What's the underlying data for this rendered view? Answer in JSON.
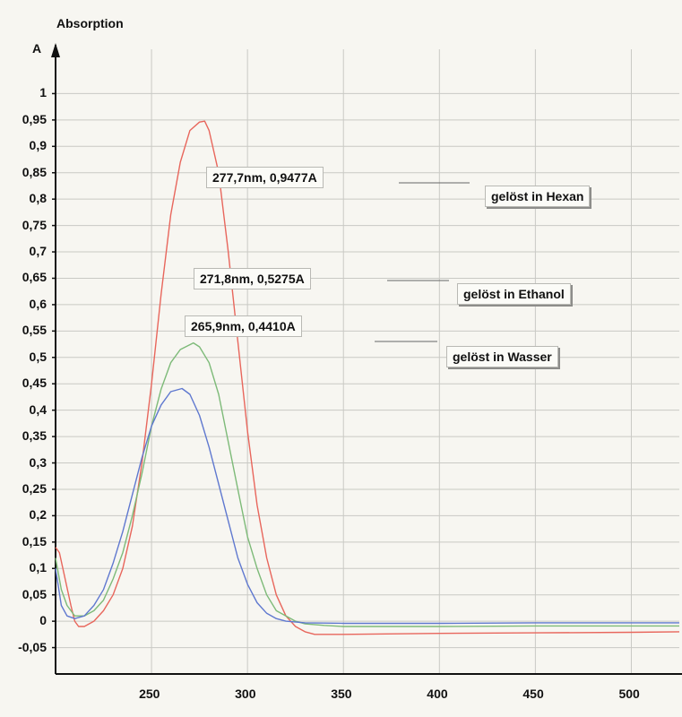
{
  "chart_data": {
    "type": "line",
    "ylabel": "Absorption",
    "yunit": "A",
    "xlim": [
      200,
      525
    ],
    "ylim": [
      -0.1,
      1.05
    ],
    "xticks": [
      250,
      300,
      350,
      400,
      450,
      500
    ],
    "yticks": [
      1,
      0.95,
      0.9,
      0.85,
      0.8,
      0.75,
      0.7,
      0.65,
      0.6,
      0.55,
      0.5,
      0.45,
      0.4,
      0.35,
      0.3,
      0.25,
      0.2,
      0.15,
      0.1,
      0.05,
      0,
      -0.05
    ],
    "ytick_labels": [
      "1",
      "0,95",
      "0,9",
      "0,85",
      "0,8",
      "0,75",
      "0,7",
      "0,65",
      "0,6",
      "0,55",
      "0,5",
      "0,45",
      "0,4",
      "0,35",
      "0,3",
      "0,25",
      "0,2",
      "0,15",
      "0,1",
      "0,05",
      "0",
      "-0,05"
    ],
    "grid": true,
    "series": [
      {
        "name": "gelöst in Hexan",
        "color": "#e8665c",
        "peak_label": "277,7nm, 0,9477A",
        "x": [
          200,
          202,
          205,
          208,
          210,
          212,
          215,
          220,
          225,
          230,
          235,
          240,
          245,
          250,
          255,
          260,
          265,
          270,
          275,
          277.7,
          280,
          285,
          290,
          295,
          300,
          305,
          310,
          315,
          320,
          325,
          330,
          335,
          340,
          350,
          400,
          450,
          500,
          525
        ],
        "y": [
          0.14,
          0.13,
          0.08,
          0.03,
          0.0,
          -0.01,
          -0.01,
          0.0,
          0.02,
          0.05,
          0.1,
          0.18,
          0.3,
          0.45,
          0.62,
          0.77,
          0.87,
          0.93,
          0.946,
          0.9477,
          0.93,
          0.85,
          0.7,
          0.53,
          0.36,
          0.22,
          0.12,
          0.05,
          0.01,
          -0.01,
          -0.02,
          -0.025,
          -0.025,
          -0.025,
          -0.023,
          -0.022,
          -0.021,
          -0.02
        ]
      },
      {
        "name": "gelöst in Ethanol",
        "color": "#7dba78",
        "peak_label": "271,8nm, 0,5275A",
        "x": [
          200,
          203,
          206,
          210,
          215,
          220,
          225,
          230,
          235,
          240,
          245,
          250,
          255,
          260,
          265,
          271.8,
          275,
          280,
          285,
          290,
          295,
          300,
          305,
          310,
          315,
          320,
          325,
          330,
          340,
          350,
          400,
          450,
          500,
          525
        ],
        "y": [
          0.12,
          0.06,
          0.03,
          0.01,
          0.01,
          0.02,
          0.04,
          0.08,
          0.13,
          0.2,
          0.28,
          0.37,
          0.44,
          0.49,
          0.515,
          0.5275,
          0.52,
          0.49,
          0.43,
          0.34,
          0.25,
          0.16,
          0.1,
          0.05,
          0.02,
          0.01,
          0.0,
          -0.005,
          -0.008,
          -0.01,
          -0.01,
          -0.009,
          -0.009,
          -0.009
        ]
      },
      {
        "name": "gelöst in Wasser",
        "color": "#5f78cf",
        "peak_label": "265,9nm, 0,4410A",
        "x": [
          200,
          203,
          206,
          210,
          215,
          220,
          225,
          230,
          235,
          240,
          245,
          250,
          255,
          260,
          265.9,
          270,
          275,
          280,
          285,
          290,
          295,
          300,
          305,
          310,
          315,
          320,
          330,
          350,
          400,
          450,
          500,
          525
        ],
        "y": [
          0.1,
          0.03,
          0.01,
          0.005,
          0.01,
          0.03,
          0.06,
          0.11,
          0.17,
          0.24,
          0.31,
          0.37,
          0.41,
          0.435,
          0.441,
          0.43,
          0.39,
          0.33,
          0.26,
          0.19,
          0.12,
          0.07,
          0.035,
          0.015,
          0.005,
          0.0,
          -0.003,
          -0.004,
          -0.004,
          -0.003,
          -0.003,
          -0.003
        ]
      }
    ]
  }
}
